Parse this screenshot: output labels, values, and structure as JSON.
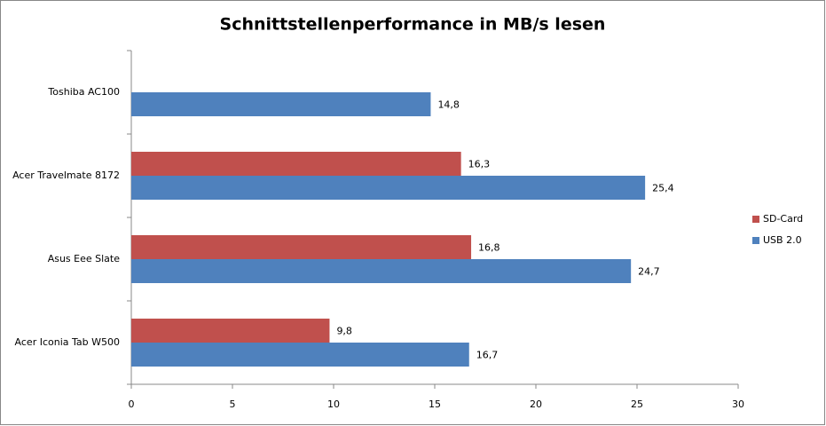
{
  "chart_data": {
    "type": "hbar",
    "title": "Schnittstellenperformance in MB/s lesen",
    "categories": [
      "Toshiba AC100",
      "Acer Travelmate 8172",
      "Asus Eee Slate",
      "Acer Iconia Tab  W500"
    ],
    "series": [
      {
        "name": "SD-Card",
        "color": "#c0504d",
        "values": [
          null,
          16.3,
          16.8,
          9.8
        ],
        "value_labels": [
          null,
          "16,3",
          "16,8",
          "9,8"
        ]
      },
      {
        "name": "USB 2.0",
        "color": "#4f81bd",
        "values": [
          14.8,
          25.4,
          24.7,
          16.7
        ],
        "value_labels": [
          "14,8",
          "25,4",
          "24,7",
          "16,7"
        ]
      }
    ],
    "xlim": [
      0,
      30
    ],
    "xticks": [
      0,
      5,
      10,
      15,
      20,
      25,
      30
    ],
    "grid": false,
    "legend": "right"
  }
}
